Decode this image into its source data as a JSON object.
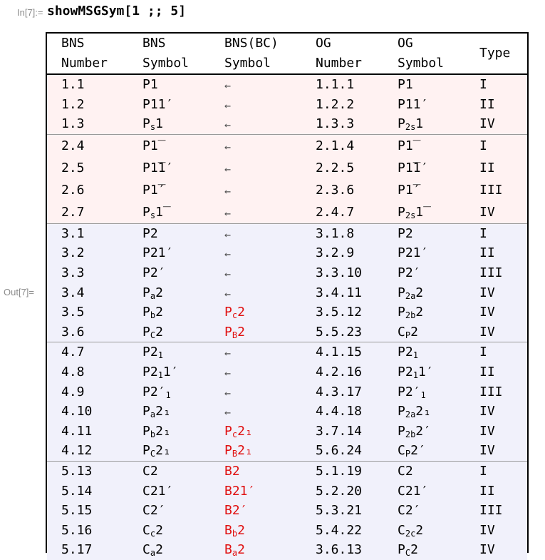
{
  "input": {
    "label": "In[7]:=",
    "code": "showMSGSym[1 ;; 5]"
  },
  "output": {
    "label": "Out[7]="
  },
  "table": {
    "headers": [
      [
        "BNS",
        "Number"
      ],
      [
        "BNS",
        "Symbol"
      ],
      [
        "BNS(BC)",
        "Symbol"
      ],
      [
        "OG",
        "Number"
      ],
      [
        "OG",
        "Symbol"
      ],
      [
        "Type",
        ""
      ]
    ],
    "groups": [
      {
        "color": "pink",
        "rows": [
          [
            {
              "t": "1.1"
            },
            {
              "t": "P1"
            },
            {
              "t": "←",
              "arrow": true
            },
            {
              "t": "1.1.1"
            },
            {
              "t": "P1"
            },
            {
              "t": "I"
            }
          ],
          [
            {
              "t": "1.2"
            },
            {
              "t": "P11′"
            },
            {
              "t": "←",
              "arrow": true
            },
            {
              "t": "1.2.2"
            },
            {
              "t": "P11′"
            },
            {
              "t": "II"
            }
          ],
          [
            {
              "t": "1.3"
            },
            {
              "t": "P",
              "sub": "s",
              "after": "1"
            },
            {
              "t": "←",
              "arrow": true
            },
            {
              "t": "1.3.3"
            },
            {
              "t": "P",
              "sub": "2s",
              "after": "1"
            },
            {
              "t": "IV"
            }
          ]
        ]
      },
      {
        "color": "pink",
        "tall": true,
        "rows": [
          [
            {
              "t": "2.4"
            },
            {
              "t": "P1̅"
            },
            {
              "t": "←",
              "arrow": true
            },
            {
              "t": "2.1.4"
            },
            {
              "t": "P1̅"
            },
            {
              "t": "I"
            }
          ],
          [
            {
              "t": "2.5"
            },
            {
              "t": "P1̅1′"
            },
            {
              "t": "←",
              "arrow": true
            },
            {
              "t": "2.2.5"
            },
            {
              "t": "P1̅1′"
            },
            {
              "t": "II"
            }
          ],
          [
            {
              "t": "2.6"
            },
            {
              "t": "P1̅′"
            },
            {
              "t": "←",
              "arrow": true
            },
            {
              "t": "2.3.6"
            },
            {
              "t": "P1̅′"
            },
            {
              "t": "III"
            }
          ],
          [
            {
              "t": "2.7"
            },
            {
              "t": "P",
              "sub": "s",
              "after": "1̅"
            },
            {
              "t": "←",
              "arrow": true
            },
            {
              "t": "2.4.7"
            },
            {
              "t": "P",
              "sub": "2s",
              "after": "1̅"
            },
            {
              "t": "IV"
            }
          ]
        ]
      },
      {
        "color": "blue",
        "rows": [
          [
            {
              "t": "3.1"
            },
            {
              "t": "P2"
            },
            {
              "t": "←",
              "arrow": true
            },
            {
              "t": "3.1.8"
            },
            {
              "t": "P2"
            },
            {
              "t": "I"
            }
          ],
          [
            {
              "t": "3.2"
            },
            {
              "t": "P21′"
            },
            {
              "t": "←",
              "arrow": true
            },
            {
              "t": "3.2.9"
            },
            {
              "t": "P21′"
            },
            {
              "t": "II"
            }
          ],
          [
            {
              "t": "3.3"
            },
            {
              "t": "P2′"
            },
            {
              "t": "←",
              "arrow": true
            },
            {
              "t": "3.3.10"
            },
            {
              "t": "P2′"
            },
            {
              "t": "III"
            }
          ],
          [
            {
              "t": "3.4"
            },
            {
              "t": "P",
              "sub": "a",
              "after": "2"
            },
            {
              "t": "←",
              "arrow": true
            },
            {
              "t": "3.4.11"
            },
            {
              "t": "P",
              "sub": "2a",
              "after": "2"
            },
            {
              "t": "IV"
            }
          ],
          [
            {
              "t": "3.5"
            },
            {
              "t": "P",
              "sub": "b",
              "after": "2"
            },
            {
              "t": "P",
              "sub": "c",
              "after": "2",
              "red": true
            },
            {
              "t": "3.5.12"
            },
            {
              "t": "P",
              "sub": "2b",
              "after": "2"
            },
            {
              "t": "IV"
            }
          ],
          [
            {
              "t": "3.6"
            },
            {
              "t": "P",
              "sub": "C",
              "after": "2"
            },
            {
              "t": "P",
              "sub": "B",
              "after": "2",
              "red": true
            },
            {
              "t": "5.5.23"
            },
            {
              "t": "C",
              "sub": "P",
              "after": "2"
            },
            {
              "t": "IV"
            }
          ]
        ]
      },
      {
        "color": "blue",
        "rows": [
          [
            {
              "t": "4.7"
            },
            {
              "t": "P2",
              "sub": "1",
              "after": ""
            },
            {
              "t": "←",
              "arrow": true
            },
            {
              "t": "4.1.15"
            },
            {
              "t": "P2",
              "sub": "1",
              "after": ""
            },
            {
              "t": "I"
            }
          ],
          [
            {
              "t": "4.8"
            },
            {
              "t": "P2",
              "sub": "1",
              "after": "1′"
            },
            {
              "t": "←",
              "arrow": true
            },
            {
              "t": "4.2.16"
            },
            {
              "t": "P2",
              "sub": "1",
              "after": "1′"
            },
            {
              "t": "II"
            }
          ],
          [
            {
              "t": "4.9"
            },
            {
              "t": "P2′",
              "sub": "1",
              "after": ""
            },
            {
              "t": "←",
              "arrow": true
            },
            {
              "t": "4.3.17"
            },
            {
              "t": "P2′",
              "sub": "1",
              "after": ""
            },
            {
              "t": "III"
            }
          ],
          [
            {
              "t": "4.10"
            },
            {
              "t": "P",
              "sub": "a",
              "after": "2₁"
            },
            {
              "t": "←",
              "arrow": true
            },
            {
              "t": "4.4.18"
            },
            {
              "t": "P",
              "sub": "2a",
              "after": "2₁"
            },
            {
              "t": "IV"
            }
          ],
          [
            {
              "t": "4.11"
            },
            {
              "t": "P",
              "sub": "b",
              "after": "2₁"
            },
            {
              "t": "P",
              "sub": "c",
              "after": "2₁",
              "red": true
            },
            {
              "t": "3.7.14"
            },
            {
              "t": "P",
              "sub": "2b",
              "after": "2′"
            },
            {
              "t": "IV"
            }
          ],
          [
            {
              "t": "4.12"
            },
            {
              "t": "P",
              "sub": "C",
              "after": "2₁"
            },
            {
              "t": "P",
              "sub": "B",
              "after": "2₁",
              "red": true
            },
            {
              "t": "5.6.24"
            },
            {
              "t": "C",
              "sub": "P",
              "after": "2′"
            },
            {
              "t": "IV"
            }
          ]
        ]
      },
      {
        "color": "blue",
        "rows": [
          [
            {
              "t": "5.13"
            },
            {
              "t": "C2"
            },
            {
              "t": "B2",
              "red": true
            },
            {
              "t": "5.1.19"
            },
            {
              "t": "C2"
            },
            {
              "t": "I"
            }
          ],
          [
            {
              "t": "5.14"
            },
            {
              "t": "C21′"
            },
            {
              "t": "B21′",
              "red": true
            },
            {
              "t": "5.2.20"
            },
            {
              "t": "C21′"
            },
            {
              "t": "II"
            }
          ],
          [
            {
              "t": "5.15"
            },
            {
              "t": "C2′"
            },
            {
              "t": "B2′",
              "red": true
            },
            {
              "t": "5.3.21"
            },
            {
              "t": "C2′"
            },
            {
              "t": "III"
            }
          ],
          [
            {
              "t": "5.16"
            },
            {
              "t": "C",
              "sub": "c",
              "after": "2"
            },
            {
              "t": "B",
              "sub": "b",
              "after": "2",
              "red": true
            },
            {
              "t": "5.4.22"
            },
            {
              "t": "C",
              "sub": "2c",
              "after": "2"
            },
            {
              "t": "IV"
            }
          ],
          [
            {
              "t": "5.17"
            },
            {
              "t": "C",
              "sub": "a",
              "after": "2"
            },
            {
              "t": "B",
              "sub": "a",
              "after": "2",
              "red": true
            },
            {
              "t": "3.6.13"
            },
            {
              "t": "P",
              "sub": "C",
              "after": "2"
            },
            {
              "t": "IV"
            }
          ]
        ]
      }
    ],
    "colors": {
      "pink_bg": "#fff2f2",
      "blue_bg": "#f1f1fb",
      "red_text": "#e01010"
    }
  }
}
